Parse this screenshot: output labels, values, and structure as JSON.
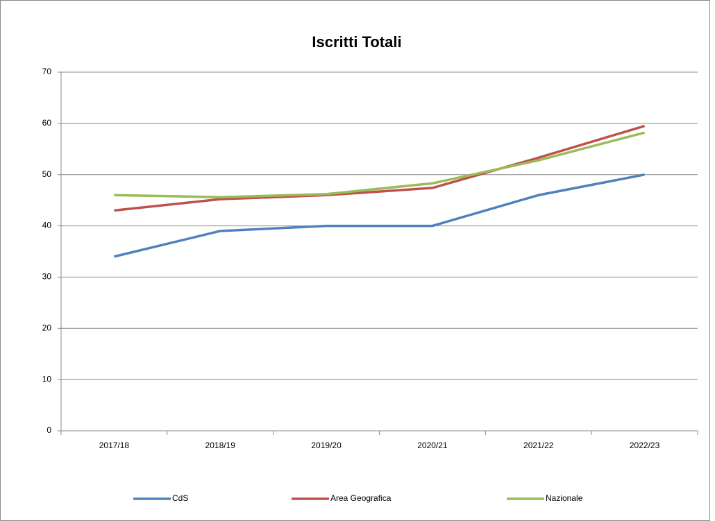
{
  "chart_data": {
    "type": "line",
    "title": "Iscritti Totali",
    "categories": [
      "2017/18",
      "2018/19",
      "2019/20",
      "2020/21",
      "2021/22",
      "2022/23"
    ],
    "series": [
      {
        "name": "CdS",
        "color": "#4f81bd",
        "values": [
          34,
          39,
          40,
          40,
          46,
          50
        ]
      },
      {
        "name": "Area Geografica",
        "color": "#c0504d",
        "values": [
          43,
          45.2,
          46,
          47.4,
          53.3,
          59.5
        ]
      },
      {
        "name": "Nazionale",
        "color": "#9bbb59",
        "values": [
          46,
          45.6,
          46.2,
          48.3,
          52.8,
          58.2
        ]
      }
    ],
    "ylim": [
      0,
      70
    ],
    "yticks": [
      0,
      10,
      20,
      30,
      40,
      50,
      60,
      70
    ],
    "grid": true,
    "legend": "bottom"
  }
}
